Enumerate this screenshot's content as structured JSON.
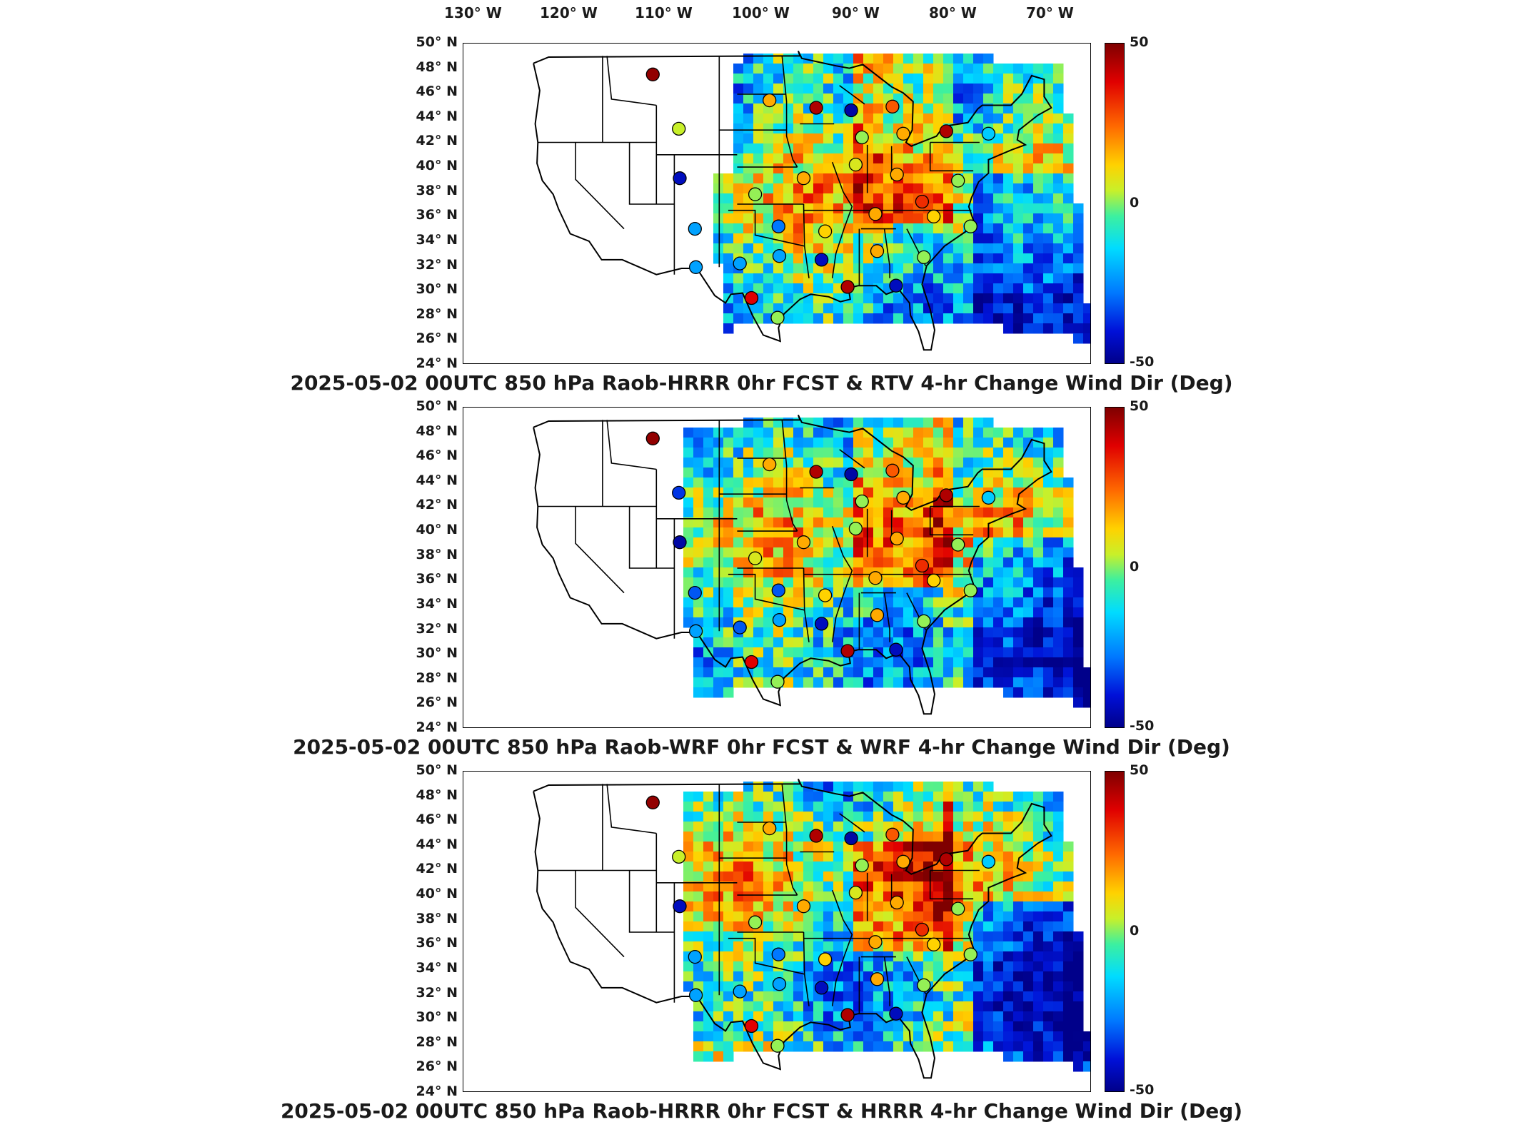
{
  "lon_labels": [
    "130° W",
    "120° W",
    "110° W",
    "100° W",
    "90° W",
    "80° W",
    "70° W"
  ],
  "lat_labels": [
    "50° N",
    "48° N",
    "46° N",
    "44° N",
    "42° N",
    "40° N",
    "38° N",
    "36° N",
    "34° N",
    "32° N",
    "30° N",
    "28° N",
    "26° N",
    "24° N"
  ],
  "colorbar": {
    "max": "50",
    "mid": "0",
    "min": "-50",
    "colors": [
      "#7f0000",
      "#e00000",
      "#ff6a00",
      "#ffd200",
      "#3cf0a0",
      "#00dcff",
      "#0078ff",
      "#00008a"
    ]
  },
  "panels": [
    {
      "title": "2025-05-02 00UTC 850 hPa Raob-HRRR 0hr FCST & RTV 4-hr Change Wind Dir (Deg)"
    },
    {
      "title": "2025-05-02 00UTC 850 hPa Raob-WRF 0hr FCST & WRF 4-hr Change Wind Dir (Deg)"
    },
    {
      "title": "2025-05-02 00UTC 850 hPa Raob-HRRR 0hr FCST & HRRR 4-hr Change Wind Dir (Deg)"
    }
  ],
  "stations": [
    {
      "lon": -111.4,
      "lat": 47.5,
      "v": [
        48,
        48,
        48
      ]
    },
    {
      "lon": -108.5,
      "lat": 43.1,
      "v": [
        8,
        -30,
        8
      ]
    },
    {
      "lon": -108.4,
      "lat": 39.1,
      "v": [
        -40,
        -45,
        -40
      ]
    },
    {
      "lon": -106.7,
      "lat": 35.0,
      "v": [
        -15,
        -25,
        -15
      ]
    },
    {
      "lon": -106.6,
      "lat": 31.9,
      "v": [
        -15,
        -15,
        -15
      ]
    },
    {
      "lon": -101.7,
      "lat": 32.2,
      "v": [
        -15,
        -25,
        -15
      ]
    },
    {
      "lon": -100.4,
      "lat": 29.4,
      "v": [
        40,
        40,
        40
      ]
    },
    {
      "lon": -100.0,
      "lat": 37.8,
      "v": [
        5,
        10,
        5
      ]
    },
    {
      "lon": -97.4,
      "lat": 35.2,
      "v": [
        -20,
        -25,
        -20
      ]
    },
    {
      "lon": -97.3,
      "lat": 32.8,
      "v": [
        -15,
        -15,
        -15
      ]
    },
    {
      "lon": -97.5,
      "lat": 27.8,
      "v": [
        5,
        5,
        5
      ]
    },
    {
      "lon": -98.4,
      "lat": 45.4,
      "v": [
        20,
        20,
        20
      ]
    },
    {
      "lon": -94.6,
      "lat": 39.1,
      "v": [
        20,
        20,
        20
      ]
    },
    {
      "lon": -93.2,
      "lat": 44.8,
      "v": [
        45,
        45,
        45
      ]
    },
    {
      "lon": -92.6,
      "lat": 32.5,
      "v": [
        -40,
        -40,
        -40
      ]
    },
    {
      "lon": -92.2,
      "lat": 34.8,
      "v": [
        15,
        15,
        15
      ]
    },
    {
      "lon": -89.7,
      "lat": 30.3,
      "v": [
        45,
        45,
        45
      ]
    },
    {
      "lon": -88.8,
      "lat": 40.2,
      "v": [
        10,
        5,
        10
      ]
    },
    {
      "lon": -88.1,
      "lat": 42.4,
      "v": [
        5,
        5,
        5
      ]
    },
    {
      "lon": -89.3,
      "lat": 44.6,
      "v": [
        -45,
        -45,
        -45
      ]
    },
    {
      "lon": -86.6,
      "lat": 36.2,
      "v": [
        20,
        20,
        20
      ]
    },
    {
      "lon": -86.4,
      "lat": 33.2,
      "v": [
        20,
        20,
        20
      ]
    },
    {
      "lon": -84.2,
      "lat": 39.4,
      "v": [
        20,
        20,
        20
      ]
    },
    {
      "lon": -83.5,
      "lat": 42.7,
      "v": [
        20,
        20,
        20
      ]
    },
    {
      "lon": -84.7,
      "lat": 44.9,
      "v": [
        30,
        30,
        30
      ]
    },
    {
      "lon": -84.3,
      "lat": 30.4,
      "v": [
        -40,
        -40,
        -40
      ]
    },
    {
      "lon": -81.4,
      "lat": 37.2,
      "v": [
        35,
        35,
        35
      ]
    },
    {
      "lon": -80.1,
      "lat": 36.0,
      "v": [
        15,
        15,
        15
      ]
    },
    {
      "lon": -81.2,
      "lat": 32.7,
      "v": [
        5,
        5,
        5
      ]
    },
    {
      "lon": -78.7,
      "lat": 42.9,
      "v": [
        45,
        45,
        45
      ]
    },
    {
      "lon": -77.4,
      "lat": 38.9,
      "v": [
        5,
        5,
        5
      ]
    },
    {
      "lon": -76.0,
      "lat": 35.2,
      "v": [
        5,
        5,
        5
      ]
    },
    {
      "lon": -74.0,
      "lat": 42.7,
      "v": [
        -10,
        -10,
        -10
      ]
    }
  ]
}
